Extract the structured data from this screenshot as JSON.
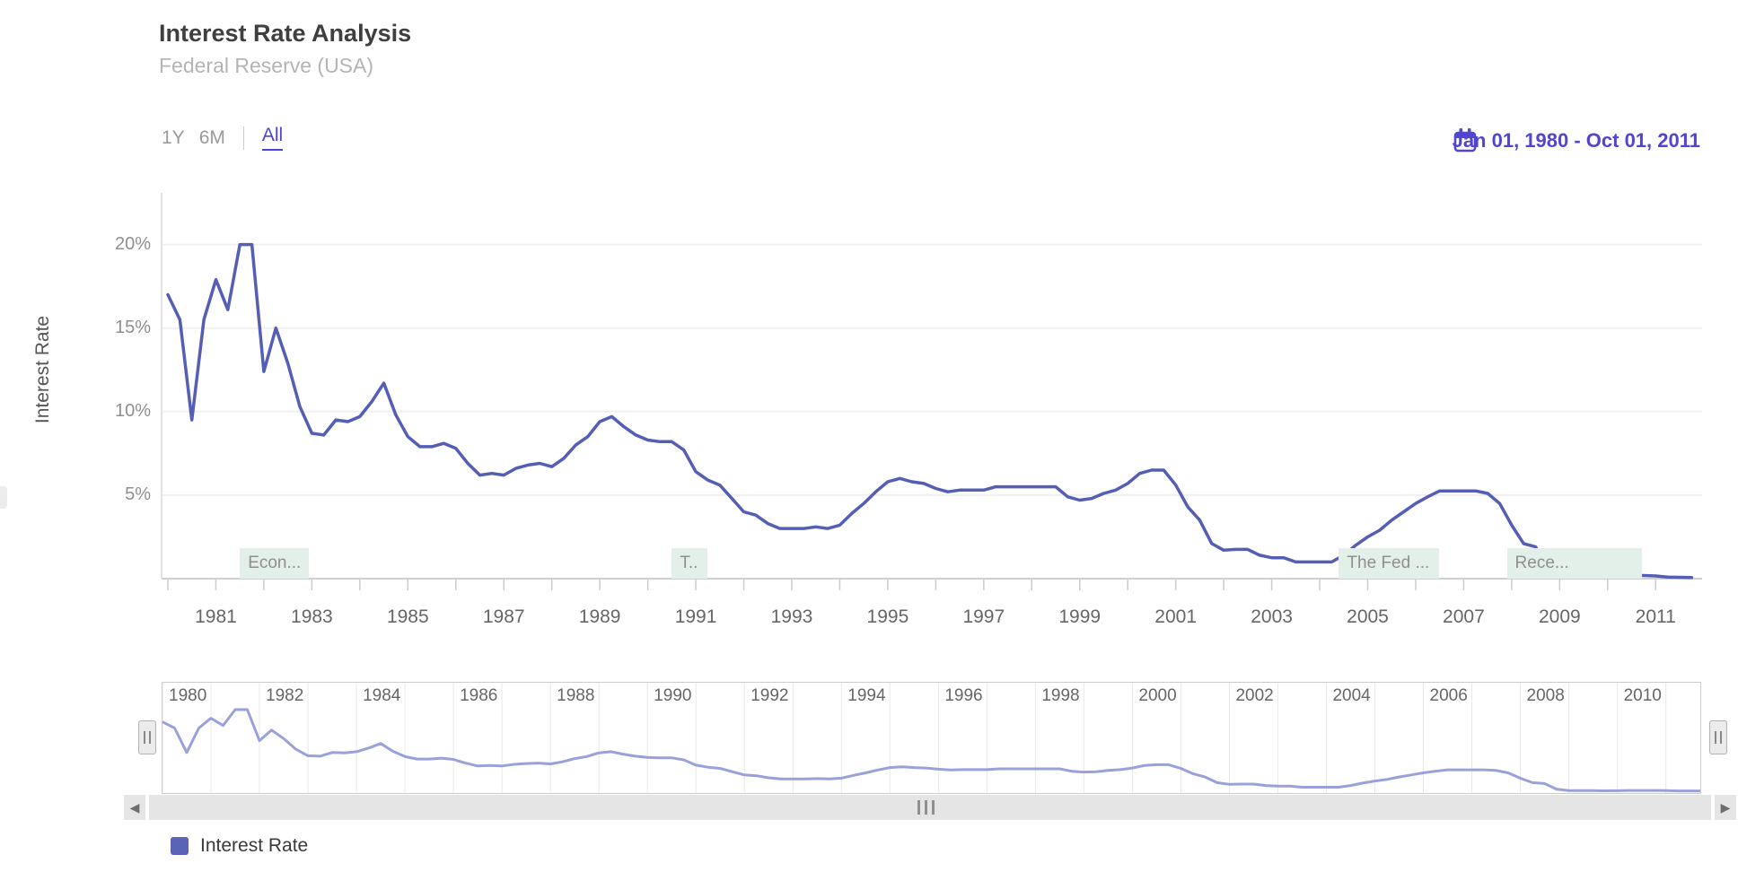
{
  "header": {
    "title": "Interest Rate Analysis",
    "subtitle": "Federal Reserve (USA)"
  },
  "range_selector": {
    "buttons": [
      {
        "label": "1Y",
        "active": false
      },
      {
        "label": "6M",
        "active": false
      },
      {
        "label": "All",
        "active": true
      }
    ],
    "calendar_icon": "calendar-icon",
    "date_range": "Jan 01, 1980 - Oct 01, 2011",
    "accent_color": "#5145d2"
  },
  "chart_data": {
    "type": "line",
    "title": "Interest Rate Analysis",
    "subtitle": "Federal Reserve (USA)",
    "ylabel": "Interest Rate",
    "ylim": [
      0,
      22
    ],
    "grid": true,
    "yticks": [
      {
        "value": 5,
        "label": "5%"
      },
      {
        "value": 10,
        "label": "10%"
      },
      {
        "value": 15,
        "label": "15%"
      },
      {
        "value": 20,
        "label": "20%"
      }
    ],
    "x_unit": "quarterly",
    "x_range": [
      "1980-01-01",
      "2011-10-01"
    ],
    "xtick_labels": [
      "1981",
      "1983",
      "1985",
      "1987",
      "1989",
      "1991",
      "1993",
      "1995",
      "1997",
      "1999",
      "2001",
      "2003",
      "2005",
      "2007",
      "2009",
      "2011"
    ],
    "series": [
      {
        "name": "Interest Rate",
        "color": "#545eb5",
        "values": [
          17.0,
          15.5,
          9.5,
          15.5,
          17.9,
          16.1,
          20.0,
          20.0,
          12.4,
          15.0,
          12.9,
          10.3,
          8.7,
          8.6,
          9.5,
          9.4,
          9.7,
          10.6,
          11.7,
          9.8,
          8.5,
          7.9,
          7.9,
          8.1,
          7.8,
          6.9,
          6.2,
          6.3,
          6.2,
          6.6,
          6.8,
          6.9,
          6.7,
          7.2,
          8.0,
          8.5,
          9.4,
          9.7,
          9.1,
          8.6,
          8.3,
          8.2,
          8.2,
          7.7,
          6.4,
          5.9,
          5.6,
          4.8,
          4.0,
          3.8,
          3.3,
          3.0,
          3.0,
          3.0,
          3.1,
          3.0,
          3.2,
          3.9,
          4.5,
          5.2,
          5.8,
          6.0,
          5.8,
          5.7,
          5.4,
          5.2,
          5.3,
          5.3,
          5.3,
          5.5,
          5.5,
          5.5,
          5.5,
          5.5,
          5.5,
          4.9,
          4.7,
          4.8,
          5.1,
          5.3,
          5.7,
          6.3,
          6.5,
          6.5,
          5.6,
          4.3,
          3.5,
          2.1,
          1.7,
          1.75,
          1.75,
          1.4,
          1.25,
          1.25,
          1.0,
          1.0,
          1.0,
          1.0,
          1.4,
          2.0,
          2.5,
          2.9,
          3.5,
          4.0,
          4.5,
          4.9,
          5.25,
          5.25,
          5.25,
          5.25,
          5.1,
          4.5,
          3.2,
          2.1,
          1.9,
          0.5,
          0.18,
          0.18,
          0.16,
          0.12,
          0.13,
          0.19,
          0.19,
          0.19,
          0.16,
          0.09,
          0.08,
          0.07
        ]
      }
    ],
    "annotations": [
      {
        "label": "Econ...",
        "year": 1981.5,
        "min_width": 72
      },
      {
        "label": "T..",
        "year": 1990.5,
        "min_width": 40
      },
      {
        "label": "The Fed ...",
        "year": 2004.4,
        "min_width": 112
      },
      {
        "label": "Rece...",
        "year": 2007.9,
        "min_width": 150
      }
    ],
    "navigator": {
      "labels": [
        "1980",
        "1982",
        "1984",
        "1986",
        "1988",
        "1990",
        "1992",
        "1994",
        "1996",
        "1998",
        "2000",
        "2002",
        "2004",
        "2006",
        "2008",
        "2010"
      ],
      "line_color": "#9aa1da"
    },
    "legend_position": "bottom-left"
  },
  "legend": {
    "items": [
      {
        "label": "Interest Rate",
        "color": "#5b63b7"
      }
    ]
  },
  "scrollbar": {
    "left_arrow": "◀",
    "right_arrow": "▶"
  }
}
